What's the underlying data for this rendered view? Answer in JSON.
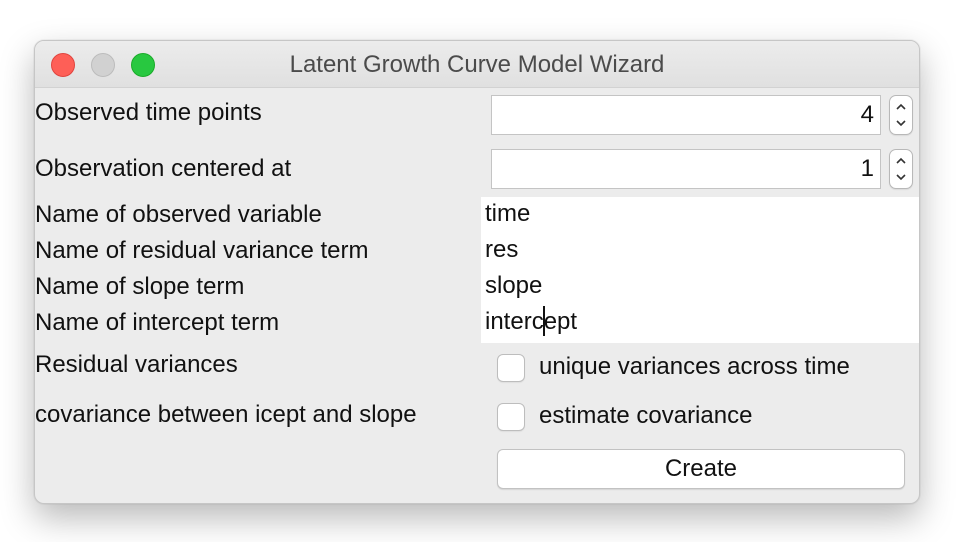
{
  "window": {
    "title": "Latent Growth Curve Model Wizard"
  },
  "form": {
    "time_points": {
      "label": "Observed time points",
      "value": "4"
    },
    "centered_at": {
      "label": "Observation centered at",
      "value": "1"
    },
    "observed_variable": {
      "label": "Name of observed variable",
      "value": "time"
    },
    "residual_term": {
      "label": "Name of residual variance term",
      "value": "res"
    },
    "slope_term": {
      "label": "Name of slope term",
      "value": "slope"
    },
    "intercept_term": {
      "label": "Name of intercept term",
      "value": "intercept"
    },
    "residual_variances": {
      "label": "Residual variances",
      "option": "unique variances across time",
      "checked": false
    },
    "covariance": {
      "label": "covariance between icept and slope",
      "option": "estimate covariance",
      "checked": false
    },
    "create_label": "Create"
  },
  "colors": {
    "close": "#fe5f57",
    "minimize_inactive": "#d1d1d1",
    "zoom": "#28c840",
    "window_bg": "#ececec"
  }
}
